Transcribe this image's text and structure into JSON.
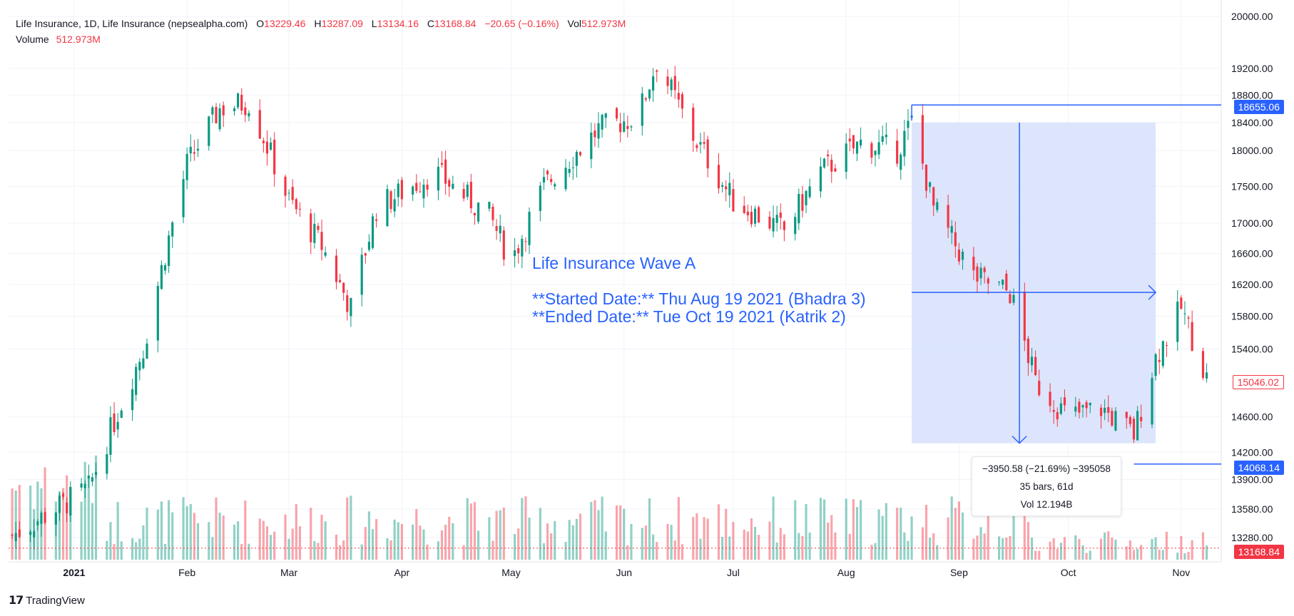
{
  "legend": {
    "symbol": "Life Insurance, 1D, Life Insurance (nepsealpha.com)",
    "open_label": "O",
    "open": "13229.46",
    "high_label": "H",
    "high": "13287.09",
    "low_label": "L",
    "low": "13134.16",
    "close_label": "C",
    "close": "13168.84",
    "change": "−20.65 (−0.16%)",
    "vol_label": "Vol",
    "vol": "512.973M",
    "volume_label": "Volume",
    "volume_value": "512.973M"
  },
  "annotation": {
    "title": "Life Insurance Wave A",
    "started": "**Started Date:** Thu Aug 19 2021 (Bhadra 3)",
    "ended": "**Ended Date:** Tue Oct 19 2021 (Katrik 2)"
  },
  "measure": {
    "change": "−3950.58 (−21.69%) −395058",
    "bars": "35 bars, 61d",
    "vol": "Vol 12.194B"
  },
  "price_tags": {
    "top": "18655.06",
    "current": "15046.02",
    "bottom": "14068.14",
    "close": "13168.84"
  },
  "branding": "TradingView",
  "colors": {
    "up": "#089981",
    "down": "#f23645",
    "accent": "#2962ff",
    "range_fill": "#d6e0fb"
  },
  "chart_data": {
    "type": "candlestick",
    "y_scale": "log",
    "ylim": [
      13050,
      20000
    ],
    "y_ticks": [
      "20000.00",
      "19200.00",
      "18800.00",
      "18400.00",
      "18000.00",
      "17500.00",
      "17000.00",
      "16600.00",
      "16200.00",
      "15800.00",
      "15400.00",
      "14600.00",
      "14200.00",
      "13900.00",
      "13580.00",
      "13280.00"
    ],
    "x_ticks": [
      "2021",
      "Feb",
      "Mar",
      "Apr",
      "May",
      "Jun",
      "Jul",
      "Aug",
      "Sep",
      "Oct",
      "Nov"
    ],
    "close_key_points": [
      {
        "date": "2020-12-15",
        "value": 13300
      },
      {
        "date": "2021-01-05",
        "value": 13800
      },
      {
        "date": "2021-01-20",
        "value": 15400
      },
      {
        "date": "2021-02-01",
        "value": 17800
      },
      {
        "date": "2021-02-10",
        "value": 18600
      },
      {
        "date": "2021-02-18",
        "value": 18700
      },
      {
        "date": "2021-03-01",
        "value": 17300
      },
      {
        "date": "2021-03-10",
        "value": 16700
      },
      {
        "date": "2021-03-18",
        "value": 15900
      },
      {
        "date": "2021-03-25",
        "value": 17200
      },
      {
        "date": "2021-04-10",
        "value": 17700
      },
      {
        "date": "2021-04-25",
        "value": 17100
      },
      {
        "date": "2021-05-01",
        "value": 16500
      },
      {
        "date": "2021-05-10",
        "value": 17500
      },
      {
        "date": "2021-05-25",
        "value": 18300
      },
      {
        "date": "2021-06-05",
        "value": 18500
      },
      {
        "date": "2021-06-10",
        "value": 19300
      },
      {
        "date": "2021-06-20",
        "value": 18200
      },
      {
        "date": "2021-07-01",
        "value": 17300
      },
      {
        "date": "2021-07-15",
        "value": 16900
      },
      {
        "date": "2021-07-25",
        "value": 17700
      },
      {
        "date": "2021-08-05",
        "value": 18100
      },
      {
        "date": "2021-08-15",
        "value": 18000
      },
      {
        "date": "2021-08-19",
        "value": 18400
      },
      {
        "date": "2021-08-25",
        "value": 17200
      },
      {
        "date": "2021-09-05",
        "value": 16300
      },
      {
        "date": "2021-09-15",
        "value": 16100
      },
      {
        "date": "2021-09-22",
        "value": 15000
      },
      {
        "date": "2021-10-01",
        "value": 14600
      },
      {
        "date": "2021-10-10",
        "value": 14700
      },
      {
        "date": "2021-10-19",
        "value": 14400
      },
      {
        "date": "2021-10-25",
        "value": 15300
      },
      {
        "date": "2021-11-01",
        "value": 15900
      },
      {
        "date": "2021-11-08",
        "value": 15050
      }
    ],
    "volume_label": "Volume"
  }
}
